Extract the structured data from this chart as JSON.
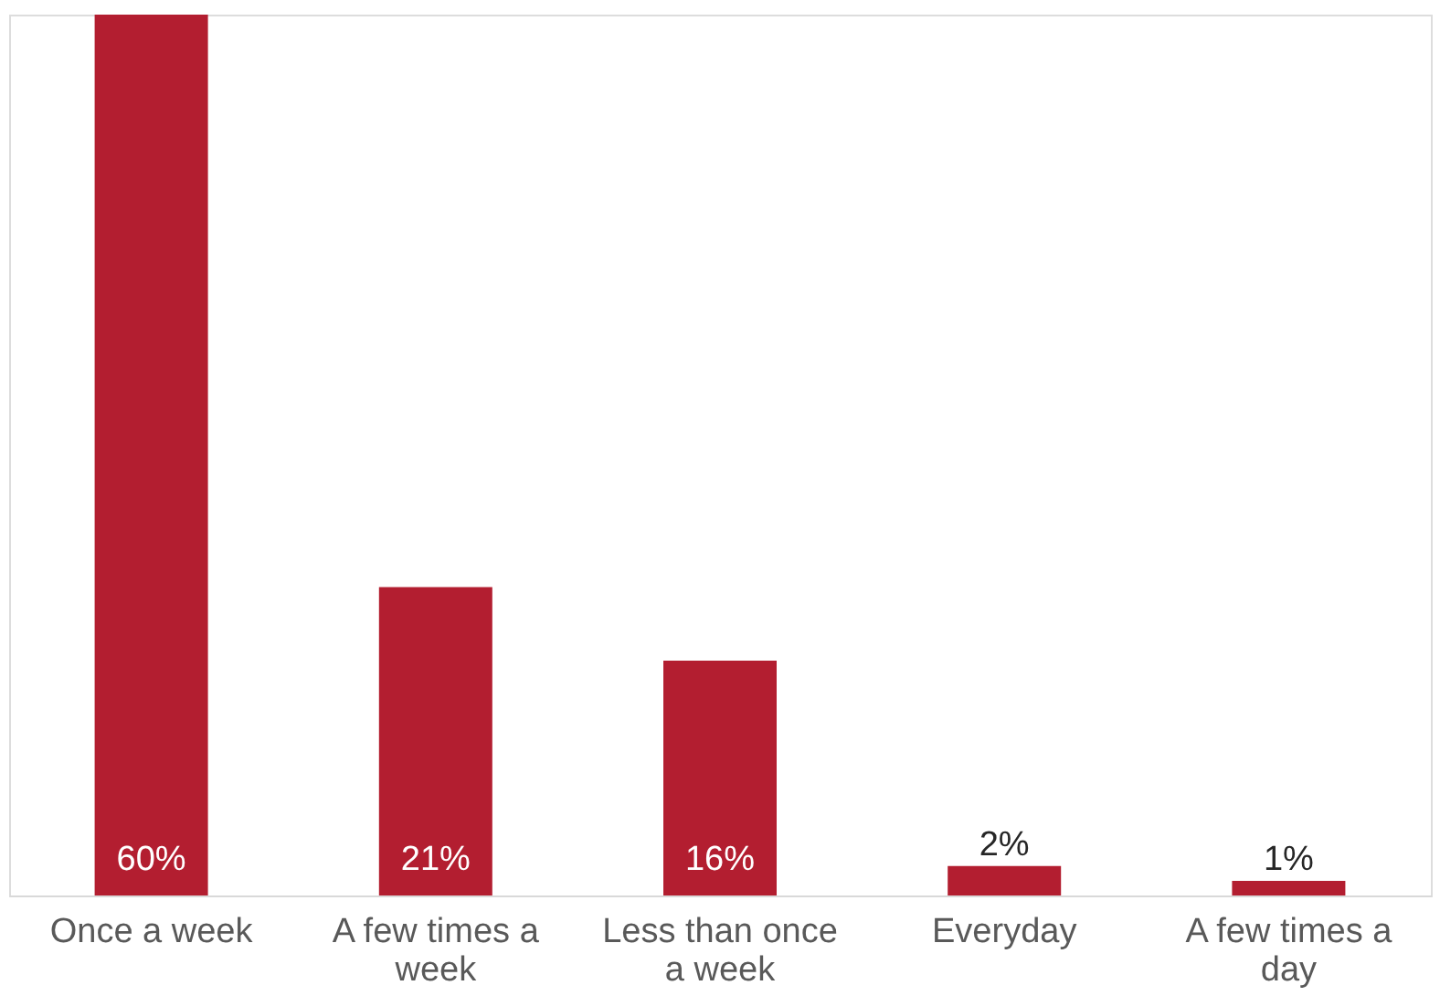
{
  "chart_data": {
    "type": "bar",
    "categories": [
      "Once a week",
      "A few times a week",
      "Less than once a week",
      "Everyday",
      "A few times a day"
    ],
    "values": [
      60,
      21,
      16,
      2,
      1
    ],
    "value_labels": [
      "60%",
      "21%",
      "16%",
      "2%",
      "1%"
    ],
    "color": "#b31e30",
    "grid": false
  }
}
